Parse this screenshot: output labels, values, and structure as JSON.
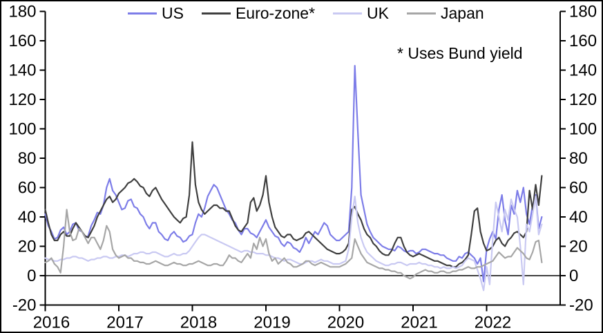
{
  "annotation": "* Uses Bund yield",
  "legend": {
    "items": [
      {
        "label": "US"
      },
      {
        "label": "Euro-zone*"
      },
      {
        "label": "UK"
      },
      {
        "label": "Japan"
      }
    ]
  },
  "chart_data": {
    "type": "line",
    "title": "",
    "xlabel": "",
    "ylabel": "",
    "xlim": [
      2016,
      2023
    ],
    "ylim": [
      -20,
      180
    ],
    "yticks": [
      -20,
      0,
      20,
      40,
      60,
      80,
      100,
      120,
      140,
      160,
      180
    ],
    "xticks": [
      2016,
      2017,
      2018,
      2019,
      2020,
      2021,
      2022
    ],
    "grid": false,
    "zero_baseline": true,
    "legend_position": "top",
    "axes_color": "#000000",
    "x_start": 2016.0,
    "x_step_years": 0.0416667,
    "series": [
      {
        "name": "US",
        "color": "#7d7de8",
        "values": [
          42,
          34,
          30,
          25,
          26,
          31,
          33,
          28,
          30,
          35,
          36,
          31,
          30,
          26,
          27,
          34,
          38,
          43,
          42,
          48,
          60,
          66,
          58,
          55,
          50,
          45,
          46,
          51,
          52,
          47,
          46,
          42,
          40,
          35,
          32,
          36,
          36,
          30,
          28,
          25,
          24,
          28,
          30,
          27,
          26,
          23,
          24,
          27,
          28,
          36,
          42,
          40,
          46,
          54,
          58,
          62,
          60,
          55,
          50,
          45,
          42,
          38,
          36,
          31,
          28,
          32,
          32,
          29,
          28,
          26,
          30,
          34,
          38,
          33,
          30,
          27,
          26,
          22,
          20,
          23,
          22,
          19,
          18,
          16,
          20,
          26,
          22,
          26,
          30,
          28,
          32,
          36,
          34,
          28,
          26,
          24,
          24,
          26,
          28,
          30,
          60,
          143,
          98,
          55,
          45,
          35,
          30,
          26,
          24,
          22,
          20,
          19,
          18,
          18,
          17,
          20,
          19,
          17,
          16,
          17,
          17,
          15,
          16,
          18,
          18,
          17,
          16,
          15,
          15,
          14,
          14,
          12,
          11,
          10,
          10,
          13,
          12,
          15,
          16,
          14,
          12,
          8,
          12,
          -4,
          18,
          25,
          30,
          25,
          45,
          55,
          38,
          28,
          48,
          42,
          58,
          50,
          60,
          42,
          35,
          48,
          55,
          32,
          40
        ]
      },
      {
        "name": "Euro-zone*",
        "color": "#3f3f3f",
        "values": [
          45,
          36,
          28,
          24,
          24,
          28,
          30,
          27,
          27,
          32,
          36,
          33,
          30,
          27,
          26,
          30,
          34,
          40,
          44,
          48,
          52,
          54,
          50,
          52,
          56,
          58,
          60,
          63,
          64,
          66,
          64,
          61,
          60,
          56,
          54,
          58,
          60,
          56,
          52,
          49,
          46,
          43,
          40,
          38,
          36,
          39,
          40,
          55,
          91,
          62,
          50,
          45,
          42,
          44,
          46,
          48,
          48,
          46,
          46,
          44,
          44,
          39,
          34,
          31,
          30,
          33,
          36,
          50,
          53,
          44,
          48,
          55,
          68,
          50,
          40,
          33,
          30,
          27,
          26,
          28,
          28,
          25,
          24,
          25,
          26,
          29,
          30,
          28,
          26,
          24,
          22,
          20,
          18,
          17,
          16,
          15,
          15,
          16,
          18,
          22,
          45,
          47,
          42,
          38,
          32,
          28,
          26,
          22,
          20,
          17,
          15,
          14,
          14,
          17,
          22,
          26,
          26,
          20,
          16,
          14,
          13,
          14,
          15,
          14,
          13,
          12,
          11,
          10,
          10,
          9,
          8,
          7,
          7,
          6,
          6,
          8,
          9,
          11,
          14,
          28,
          44,
          46,
          30,
          22,
          17,
          18,
          20,
          24,
          26,
          22,
          20,
          24,
          26,
          29,
          30,
          28,
          26,
          30,
          58,
          45,
          62,
          48,
          68
        ]
      },
      {
        "name": "UK",
        "color": "#c9c9f2",
        "values": [
          12,
          11,
          11,
          10,
          10,
          11,
          11,
          12,
          12,
          13,
          13,
          12,
          12,
          11,
          10,
          11,
          11,
          12,
          12,
          13,
          13,
          12,
          12,
          13,
          13,
          14,
          14,
          13,
          14,
          15,
          15,
          16,
          16,
          15,
          15,
          16,
          16,
          15,
          14,
          13,
          13,
          14,
          15,
          14,
          14,
          15,
          15,
          17,
          20,
          23,
          26,
          28,
          28,
          27,
          26,
          25,
          24,
          23,
          22,
          21,
          20,
          19,
          18,
          17,
          16,
          17,
          17,
          16,
          16,
          15,
          15,
          15,
          14,
          14,
          13,
          12,
          12,
          11,
          10,
          11,
          11,
          10,
          9,
          8,
          8,
          9,
          10,
          10,
          9,
          10,
          11,
          10,
          10,
          9,
          8,
          8,
          8,
          9,
          10,
          18,
          40,
          54,
          36,
          26,
          20,
          16,
          14,
          12,
          10,
          9,
          8,
          7,
          7,
          8,
          8,
          9,
          9,
          8,
          7,
          8,
          8,
          8,
          9,
          8,
          8,
          7,
          7,
          6,
          6,
          5,
          6,
          5,
          5,
          6,
          5,
          6,
          7,
          10,
          12,
          11,
          10,
          4,
          -2,
          -10,
          6,
          -6,
          25,
          50,
          40,
          30,
          45,
          38,
          52,
          45,
          40,
          20,
          -6,
          35,
          30,
          42,
          54,
          28,
          35
        ]
      },
      {
        "name": "Japan",
        "color": "#a6a6a6",
        "values": [
          9,
          10,
          12,
          8,
          6,
          2,
          20,
          45,
          30,
          24,
          25,
          32,
          30,
          26,
          22,
          26,
          26,
          22,
          18,
          24,
          34,
          30,
          18,
          14,
          12,
          13,
          14,
          12,
          12,
          10,
          10,
          9,
          9,
          8,
          8,
          9,
          10,
          9,
          8,
          7,
          7,
          8,
          9,
          8,
          8,
          7,
          7,
          8,
          8,
          9,
          10,
          9,
          8,
          7,
          7,
          8,
          8,
          7,
          7,
          10,
          14,
          12,
          12,
          10,
          9,
          12,
          15,
          12,
          22,
          18,
          26,
          20,
          25,
          15,
          10,
          12,
          8,
          10,
          12,
          9,
          8,
          6,
          6,
          7,
          8,
          10,
          10,
          8,
          7,
          8,
          9,
          8,
          7,
          6,
          6,
          6,
          6,
          7,
          8,
          10,
          12,
          25,
          20,
          15,
          12,
          9,
          8,
          7,
          6,
          5,
          5,
          4,
          4,
          3,
          3,
          2,
          2,
          0,
          -1,
          -2,
          -1,
          1,
          2,
          3,
          4,
          3,
          3,
          2,
          2,
          3,
          3,
          2,
          2,
          3,
          3,
          4,
          4,
          5,
          6,
          5,
          5,
          6,
          6,
          7,
          8,
          9,
          10,
          13,
          16,
          14,
          12,
          13,
          13,
          16,
          19,
          17,
          15,
          12,
          11,
          16,
          23,
          24,
          9
        ]
      }
    ]
  }
}
